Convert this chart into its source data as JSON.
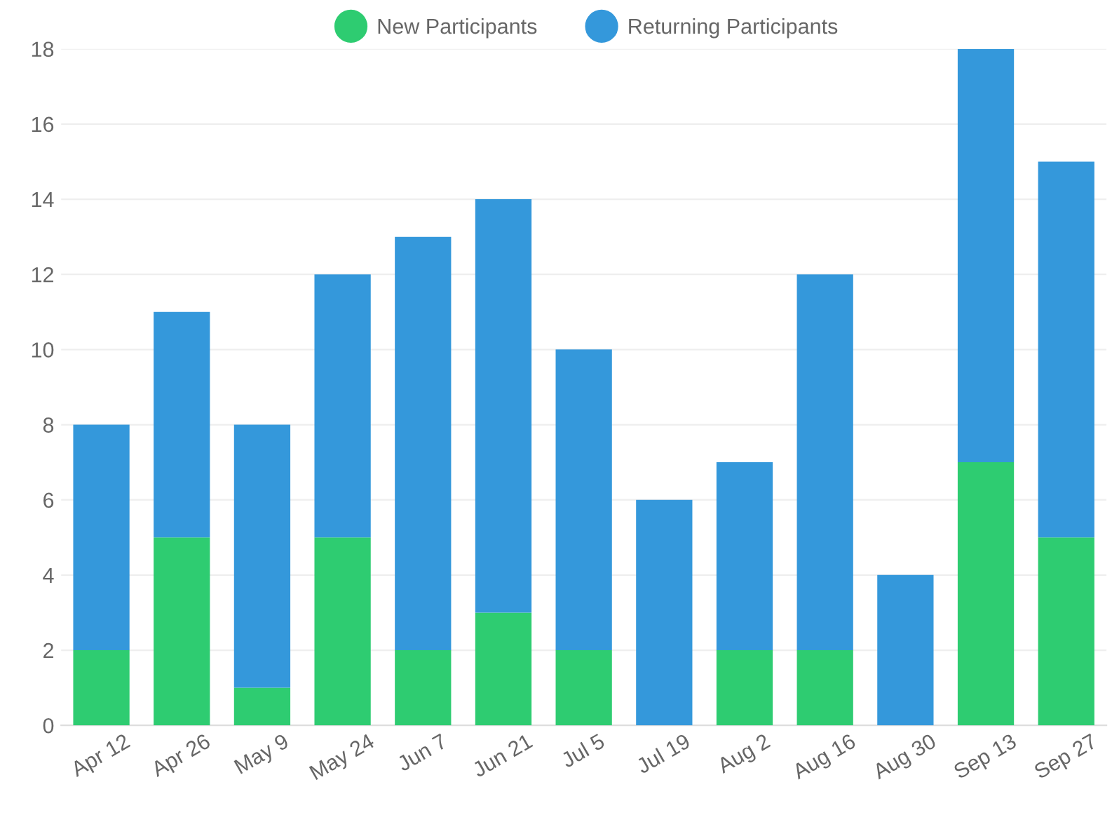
{
  "chart_data": {
    "type": "bar",
    "stacked": true,
    "categories": [
      "Apr 12",
      "Apr 26",
      "May 9",
      "May 24",
      "Jun 7",
      "Jun 21",
      "Jul 5",
      "Jul 19",
      "Aug 2",
      "Aug 16",
      "Aug 30",
      "Sep 13",
      "Sep 27"
    ],
    "series": [
      {
        "name": "New Participants",
        "color": "#2ecc71",
        "values": [
          2,
          5,
          1,
          5,
          2,
          3,
          2,
          0,
          2,
          2,
          0,
          7,
          5
        ]
      },
      {
        "name": "Returning Participants",
        "color": "#3498db",
        "values": [
          6,
          6,
          7,
          7,
          11,
          11,
          8,
          6,
          5,
          10,
          4,
          11,
          10
        ]
      }
    ],
    "ylim": [
      0,
      18
    ],
    "yticks": [
      0,
      2,
      4,
      6,
      8,
      10,
      12,
      14,
      16,
      18
    ],
    "grid": "y",
    "legend": "top"
  }
}
